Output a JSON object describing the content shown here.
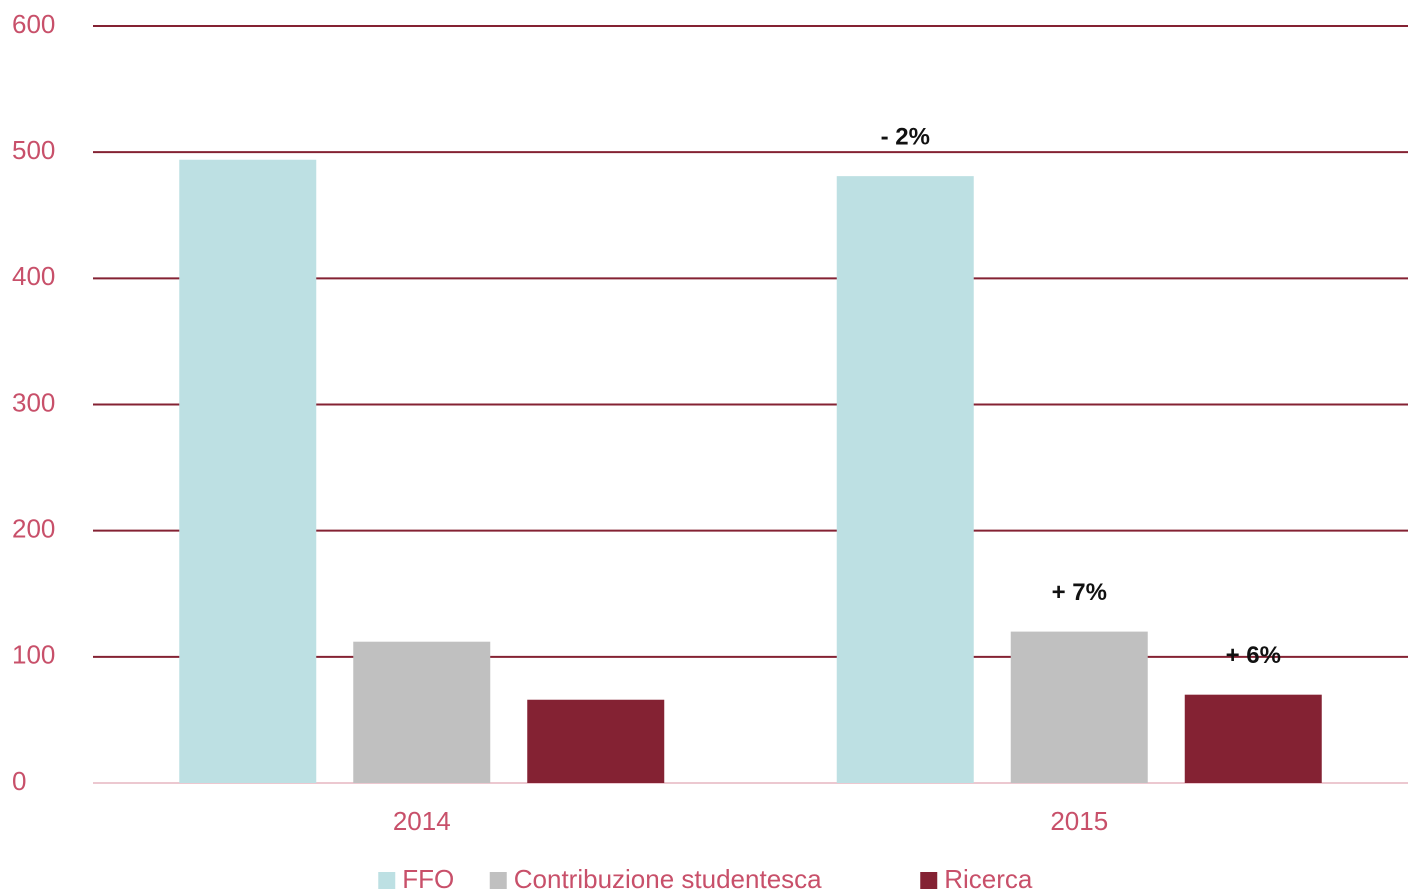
{
  "chart_data": {
    "type": "bar",
    "categories": [
      "2014",
      "2015"
    ],
    "series": [
      {
        "name": "FFO",
        "color": "#bde0e3",
        "values": [
          494,
          481
        ],
        "annotations": [
          null,
          "- 2%"
        ]
      },
      {
        "name": "Contribuzione studentesca",
        "color": "#c0c0c0",
        "values": [
          112,
          120
        ],
        "annotations": [
          null,
          "+ 7%"
        ]
      },
      {
        "name": "Ricerca",
        "color": "#842233",
        "values": [
          66,
          70
        ],
        "annotations": [
          null,
          "+ 6%"
        ]
      }
    ],
    "ylim": [
      0,
      600
    ],
    "yticks": [
      0,
      100,
      200,
      300,
      400,
      500,
      600
    ],
    "grid": true,
    "legend": "bottom"
  }
}
